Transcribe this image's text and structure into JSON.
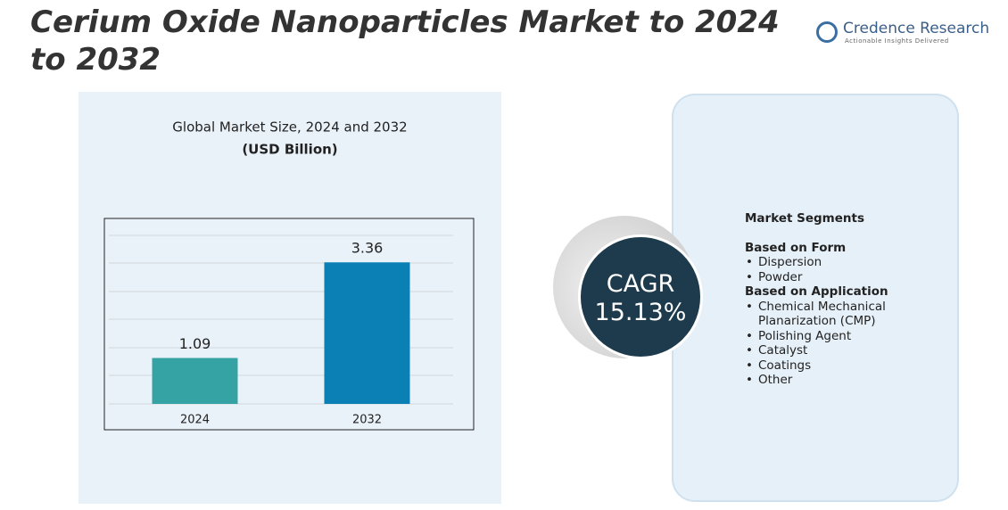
{
  "header": {
    "title": "Cerium Oxide Nanoparticles Market to 2024 to 2032",
    "logo_name": "Credence Research",
    "logo_tagline": "Actionable Insights Delivered"
  },
  "chart_data": {
    "type": "bar",
    "title": "Global Market Size, 2024 and 2032",
    "subtitle": "(USD Billion)",
    "categories": [
      "2024",
      "2032"
    ],
    "values": [
      1.09,
      3.36
    ],
    "colors": [
      "#35a3a3",
      "#0a80b4"
    ],
    "ylim": [
      0,
      4
    ]
  },
  "cagr": {
    "label": "CAGR",
    "value": "15.13%"
  },
  "segments": {
    "heading": "Market Segments",
    "groups": [
      {
        "title": "Based on Form",
        "items": [
          "Dispersion",
          "Powder"
        ]
      },
      {
        "title": "Based on Application",
        "items": [
          "Chemical Mechanical Planarization (CMP)",
          "Polishing Agent",
          "Catalyst",
          "Coatings",
          "Other"
        ]
      }
    ]
  }
}
